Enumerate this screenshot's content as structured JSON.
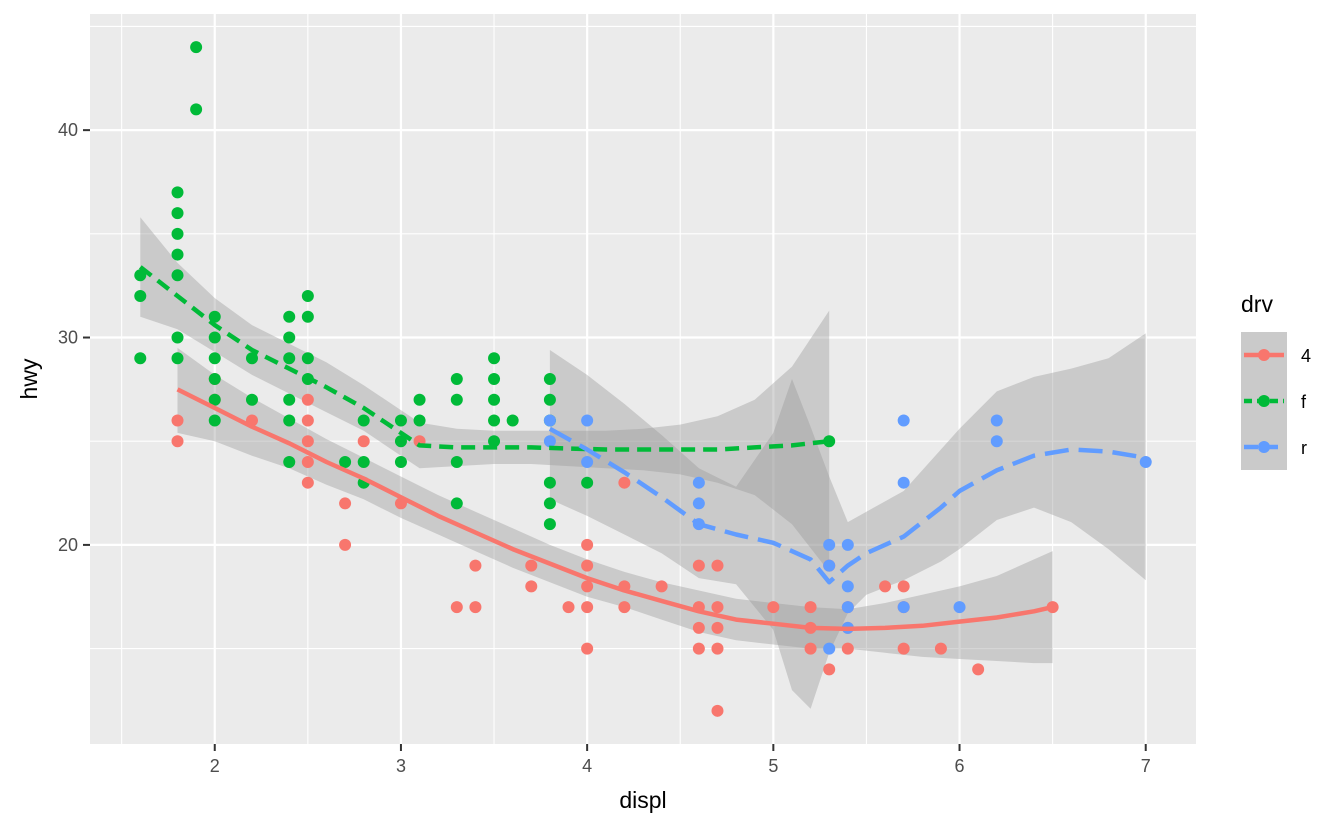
{
  "chart_data": {
    "type": "scatter",
    "xlabel": "displ",
    "ylabel": "hwy",
    "xlim": [
      1.33,
      7.27
    ],
    "ylim": [
      10.4,
      45.6
    ],
    "x_ticks": [
      2,
      3,
      4,
      5,
      6,
      7
    ],
    "y_ticks": [
      20,
      30,
      40
    ],
    "grid": true,
    "legend": {
      "title": "drv",
      "position": "right",
      "entries": [
        "4",
        "f",
        "r"
      ]
    },
    "colors": {
      "4": "#F8766D",
      "f": "#00BA38",
      "r": "#619CFF",
      "panel": "#EBEBEB",
      "ribbon": "#999999"
    },
    "series": [
      {
        "name": "4",
        "line_style": "solid",
        "points": [
          [
            1.8,
            26
          ],
          [
            1.8,
            25
          ],
          [
            2.0,
            28
          ],
          [
            2.0,
            27
          ],
          [
            2.2,
            26
          ],
          [
            2.5,
            27
          ],
          [
            2.5,
            26
          ],
          [
            2.5,
            25
          ],
          [
            2.5,
            24
          ],
          [
            2.5,
            23
          ],
          [
            2.7,
            22
          ],
          [
            2.7,
            20
          ],
          [
            2.8,
            25
          ],
          [
            3.0,
            22
          ],
          [
            3.1,
            25
          ],
          [
            3.3,
            17
          ],
          [
            3.4,
            19
          ],
          [
            3.4,
            17
          ],
          [
            3.7,
            19
          ],
          [
            3.7,
            18
          ],
          [
            3.9,
            17
          ],
          [
            4.0,
            20
          ],
          [
            4.0,
            19
          ],
          [
            4.0,
            18
          ],
          [
            4.0,
            17
          ],
          [
            4.0,
            15
          ],
          [
            4.2,
            18
          ],
          [
            4.2,
            17
          ],
          [
            4.2,
            23
          ],
          [
            4.4,
            18
          ],
          [
            4.6,
            19
          ],
          [
            4.6,
            17
          ],
          [
            4.6,
            16
          ],
          [
            4.6,
            15
          ],
          [
            4.7,
            19
          ],
          [
            4.7,
            17
          ],
          [
            4.7,
            16
          ],
          [
            4.7,
            15
          ],
          [
            4.7,
            12
          ],
          [
            5.0,
            17
          ],
          [
            5.2,
            17
          ],
          [
            5.2,
            16
          ],
          [
            5.2,
            15
          ],
          [
            5.3,
            19
          ],
          [
            5.3,
            14
          ],
          [
            5.4,
            17
          ],
          [
            5.4,
            16
          ],
          [
            5.4,
            15
          ],
          [
            5.6,
            18
          ],
          [
            5.7,
            18
          ],
          [
            5.7,
            17
          ],
          [
            5.7,
            15
          ],
          [
            5.9,
            15
          ],
          [
            6.1,
            14
          ],
          [
            6.5,
            17
          ]
        ],
        "smooth": [
          [
            1.8,
            27.5
          ],
          [
            2.0,
            26.6
          ],
          [
            2.2,
            25.7
          ],
          [
            2.4,
            24.9
          ],
          [
            2.6,
            24.0
          ],
          [
            2.8,
            23.2
          ],
          [
            3.0,
            22.3
          ],
          [
            3.2,
            21.4
          ],
          [
            3.4,
            20.6
          ],
          [
            3.6,
            19.8
          ],
          [
            3.8,
            19.1
          ],
          [
            4.0,
            18.4
          ],
          [
            4.2,
            17.8
          ],
          [
            4.4,
            17.3
          ],
          [
            4.6,
            16.8
          ],
          [
            4.8,
            16.4
          ],
          [
            5.0,
            16.2
          ],
          [
            5.2,
            16.0
          ],
          [
            5.4,
            15.95
          ],
          [
            5.6,
            16.0
          ],
          [
            5.8,
            16.1
          ],
          [
            6.0,
            16.3
          ],
          [
            6.2,
            16.5
          ],
          [
            6.4,
            16.8
          ],
          [
            6.5,
            17.0
          ]
        ],
        "ribbon": [
          [
            1.8,
            29.5,
            25.4
          ],
          [
            2.0,
            28.2,
            25.0
          ],
          [
            2.2,
            27.1,
            24.3
          ],
          [
            2.4,
            26.1,
            23.7
          ],
          [
            2.6,
            25.1,
            22.9
          ],
          [
            2.8,
            24.2,
            22.2
          ],
          [
            3.0,
            23.3,
            21.3
          ],
          [
            3.2,
            22.4,
            20.5
          ],
          [
            3.4,
            21.6,
            19.7
          ],
          [
            3.6,
            20.8,
            18.9
          ],
          [
            3.8,
            20.0,
            18.2
          ],
          [
            4.0,
            19.3,
            17.5
          ],
          [
            4.2,
            18.7,
            17.0
          ],
          [
            4.4,
            18.2,
            16.4
          ],
          [
            4.6,
            17.8,
            15.8
          ],
          [
            4.8,
            17.4,
            15.4
          ],
          [
            5.0,
            17.2,
            15.2
          ],
          [
            5.2,
            17.0,
            15.0
          ],
          [
            5.4,
            16.9,
            15.0
          ],
          [
            5.6,
            17.2,
            14.8
          ],
          [
            5.8,
            17.6,
            14.6
          ],
          [
            6.0,
            18.0,
            14.5
          ],
          [
            6.2,
            18.5,
            14.4
          ],
          [
            6.4,
            19.3,
            14.3
          ],
          [
            6.5,
            19.7,
            14.3
          ]
        ]
      },
      {
        "name": "f",
        "line_style": "dashed",
        "points": [
          [
            1.6,
            33
          ],
          [
            1.6,
            32
          ],
          [
            1.6,
            29
          ],
          [
            1.8,
            37
          ],
          [
            1.8,
            36
          ],
          [
            1.8,
            35
          ],
          [
            1.8,
            34
          ],
          [
            1.8,
            33
          ],
          [
            1.8,
            30
          ],
          [
            1.8,
            29
          ],
          [
            1.9,
            44
          ],
          [
            1.9,
            41
          ],
          [
            2.0,
            31
          ],
          [
            2.0,
            30
          ],
          [
            2.0,
            29
          ],
          [
            2.0,
            28
          ],
          [
            2.0,
            27
          ],
          [
            2.0,
            26
          ],
          [
            2.2,
            29
          ],
          [
            2.2,
            27
          ],
          [
            2.4,
            31
          ],
          [
            2.4,
            30
          ],
          [
            2.4,
            29
          ],
          [
            2.4,
            27
          ],
          [
            2.4,
            26
          ],
          [
            2.4,
            24
          ],
          [
            2.5,
            32
          ],
          [
            2.5,
            31
          ],
          [
            2.5,
            29
          ],
          [
            2.5,
            28
          ],
          [
            2.7,
            24
          ],
          [
            2.8,
            26
          ],
          [
            2.8,
            24
          ],
          [
            2.8,
            23
          ],
          [
            3.0,
            26
          ],
          [
            3.0,
            25
          ],
          [
            3.0,
            24
          ],
          [
            3.1,
            27
          ],
          [
            3.1,
            26
          ],
          [
            3.3,
            28
          ],
          [
            3.3,
            27
          ],
          [
            3.3,
            24
          ],
          [
            3.3,
            22
          ],
          [
            3.5,
            29
          ],
          [
            3.5,
            28
          ],
          [
            3.5,
            27
          ],
          [
            3.5,
            26
          ],
          [
            3.5,
            25
          ],
          [
            3.6,
            26
          ],
          [
            3.8,
            28
          ],
          [
            3.8,
            27
          ],
          [
            3.8,
            26
          ],
          [
            3.8,
            23
          ],
          [
            3.8,
            22
          ],
          [
            3.8,
            21
          ],
          [
            4.0,
            23
          ],
          [
            5.3,
            25
          ]
        ],
        "smooth": [
          [
            1.6,
            33.4
          ],
          [
            1.8,
            32.0
          ],
          [
            2.0,
            30.6
          ],
          [
            2.2,
            29.4
          ],
          [
            2.4,
            28.5
          ],
          [
            2.6,
            27.6
          ],
          [
            2.8,
            26.6
          ],
          [
            3.0,
            25.4
          ],
          [
            3.1,
            24.8
          ],
          [
            3.3,
            24.7
          ],
          [
            3.5,
            24.7
          ],
          [
            3.7,
            24.7
          ],
          [
            3.9,
            24.65
          ],
          [
            4.1,
            24.6
          ],
          [
            4.3,
            24.6
          ],
          [
            4.5,
            24.6
          ],
          [
            4.7,
            24.6
          ],
          [
            4.9,
            24.7
          ],
          [
            5.1,
            24.8
          ],
          [
            5.3,
            25.0
          ]
        ],
        "ribbon": [
          [
            1.6,
            35.8,
            31.0
          ],
          [
            1.8,
            33.6,
            30.4
          ],
          [
            2.0,
            31.9,
            29.3
          ],
          [
            2.2,
            30.6,
            28.2
          ],
          [
            2.4,
            29.7,
            27.3
          ],
          [
            2.6,
            28.8,
            26.4
          ],
          [
            2.8,
            27.7,
            25.5
          ],
          [
            3.0,
            26.5,
            24.3
          ],
          [
            3.1,
            25.9,
            23.7
          ],
          [
            3.3,
            25.6,
            23.8
          ],
          [
            3.5,
            25.5,
            23.9
          ],
          [
            3.7,
            25.5,
            23.9
          ],
          [
            3.9,
            25.5,
            23.8
          ],
          [
            4.1,
            25.5,
            23.7
          ],
          [
            4.3,
            25.6,
            23.6
          ],
          [
            4.5,
            25.8,
            23.4
          ],
          [
            4.7,
            26.2,
            23.0
          ],
          [
            4.9,
            27.0,
            22.4
          ],
          [
            5.1,
            28.6,
            21.0
          ],
          [
            5.3,
            31.3,
            18.7
          ]
        ]
      },
      {
        "name": "r",
        "line_style": "longdash",
        "points": [
          [
            3.8,
            26
          ],
          [
            3.8,
            25
          ],
          [
            4.0,
            26
          ],
          [
            4.0,
            24
          ],
          [
            4.6,
            23
          ],
          [
            4.6,
            22
          ],
          [
            4.6,
            21
          ],
          [
            5.3,
            20
          ],
          [
            5.3,
            19
          ],
          [
            5.3,
            15
          ],
          [
            5.4,
            20
          ],
          [
            5.4,
            18
          ],
          [
            5.4,
            17
          ],
          [
            5.4,
            16
          ],
          [
            5.7,
            26
          ],
          [
            5.7,
            23
          ],
          [
            5.7,
            17
          ],
          [
            6.0,
            17
          ],
          [
            6.2,
            26
          ],
          [
            6.2,
            25
          ],
          [
            7.0,
            24
          ]
        ],
        "smooth": [
          [
            3.8,
            25.6
          ],
          [
            4.0,
            24.6
          ],
          [
            4.2,
            23.5
          ],
          [
            4.4,
            22.3
          ],
          [
            4.6,
            21.0
          ],
          [
            4.8,
            20.5
          ],
          [
            5.0,
            20.1
          ],
          [
            5.2,
            19.3
          ],
          [
            5.3,
            18.2
          ],
          [
            5.4,
            19.0
          ],
          [
            5.5,
            19.6
          ],
          [
            5.7,
            20.4
          ],
          [
            5.9,
            21.8
          ],
          [
            6.0,
            22.6
          ],
          [
            6.2,
            23.6
          ],
          [
            6.4,
            24.3
          ],
          [
            6.6,
            24.6
          ],
          [
            6.8,
            24.5
          ],
          [
            7.0,
            24.2
          ]
        ],
        "ribbon": [
          [
            3.8,
            29.4,
            22.2
          ],
          [
            4.0,
            28.2,
            21.4
          ],
          [
            4.2,
            26.8,
            20.5
          ],
          [
            4.4,
            25.3,
            19.6
          ],
          [
            4.6,
            23.7,
            18.4
          ],
          [
            4.8,
            22.8,
            18.1
          ],
          [
            5.0,
            25.4,
            15.9
          ],
          [
            5.1,
            28.0,
            13.0
          ],
          [
            5.2,
            25.7,
            12.1
          ],
          [
            5.3,
            23.3,
            14.8
          ],
          [
            5.4,
            21.1,
            16.7
          ],
          [
            5.5,
            21.6,
            17.6
          ],
          [
            5.7,
            22.6,
            18.3
          ],
          [
            5.9,
            24.6,
            19.2
          ],
          [
            6.0,
            25.6,
            19.8
          ],
          [
            6.2,
            27.4,
            21.2
          ],
          [
            6.4,
            28.1,
            21.8
          ],
          [
            6.6,
            28.5,
            21.1
          ],
          [
            6.8,
            29.0,
            19.8
          ],
          [
            7.0,
            30.2,
            18.3
          ]
        ]
      }
    ]
  }
}
